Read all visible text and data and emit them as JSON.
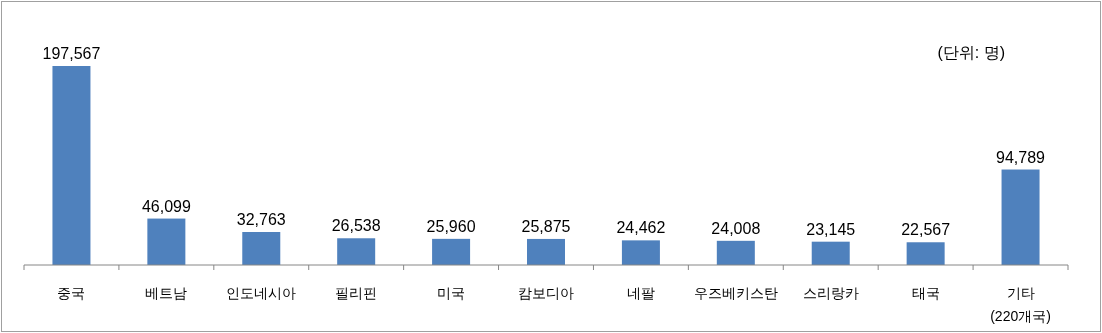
{
  "chart_data": {
    "type": "bar",
    "categories": [
      "중국",
      "베트남",
      "인도네시아",
      "필리핀",
      "미국",
      "캄보디아",
      "네팔",
      "우즈베키스탄",
      "스리랑카",
      "태국",
      "기타\n(220개국)"
    ],
    "values": [
      197567,
      46099,
      32763,
      26538,
      25960,
      25875,
      24462,
      24008,
      23145,
      22567,
      94789
    ],
    "value_labels": [
      "197,567",
      "46,099",
      "32,763",
      "26,538",
      "25,960",
      "25,875",
      "24,462",
      "24,008",
      "23,145",
      "22,567",
      "94,789"
    ],
    "color": "#4f81bd",
    "annotations": [
      "(단위: 명)"
    ]
  }
}
